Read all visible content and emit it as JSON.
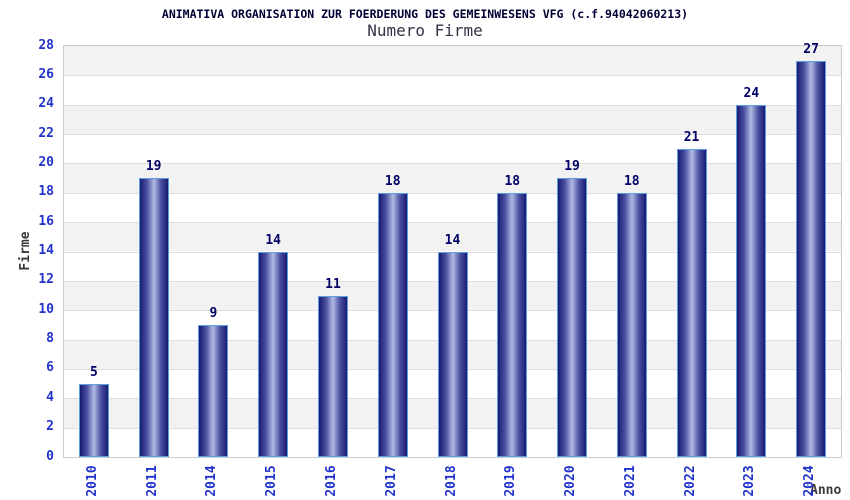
{
  "chart_data": {
    "type": "bar",
    "title": "ANIMATIVA ORGANISATION ZUR FOERDERUNG DES GEMEINWESENS VFG (c.f.94042060213)",
    "subtitle": "Numero Firme",
    "xlabel": "Anno",
    "ylabel": "Firme",
    "categories": [
      "2010",
      "2011",
      "2014",
      "2015",
      "2016",
      "2017",
      "2018",
      "2019",
      "2020",
      "2021",
      "2022",
      "2023",
      "2024"
    ],
    "values": [
      5,
      19,
      9,
      14,
      11,
      18,
      14,
      18,
      19,
      18,
      21,
      24,
      27
    ],
    "ylim": [
      0,
      28
    ],
    "ytick_step": 2,
    "grid": true,
    "legend": "none",
    "colors": {
      "title": "#000033",
      "subtitle": "#333344",
      "tick_label": "#2233cc",
      "value_label": "#000066",
      "axis_label": "#3a3a3a",
      "bar_dark": "#1a1a72",
      "bar_mid": "#4a51a0",
      "bar_light": "#b2bae4",
      "bar_border": "#5b9fe0",
      "band_gray": "#f2f2f2",
      "band_white": "#ffffff",
      "gridline": "#dedede",
      "plot_border": "#cccccc"
    }
  }
}
